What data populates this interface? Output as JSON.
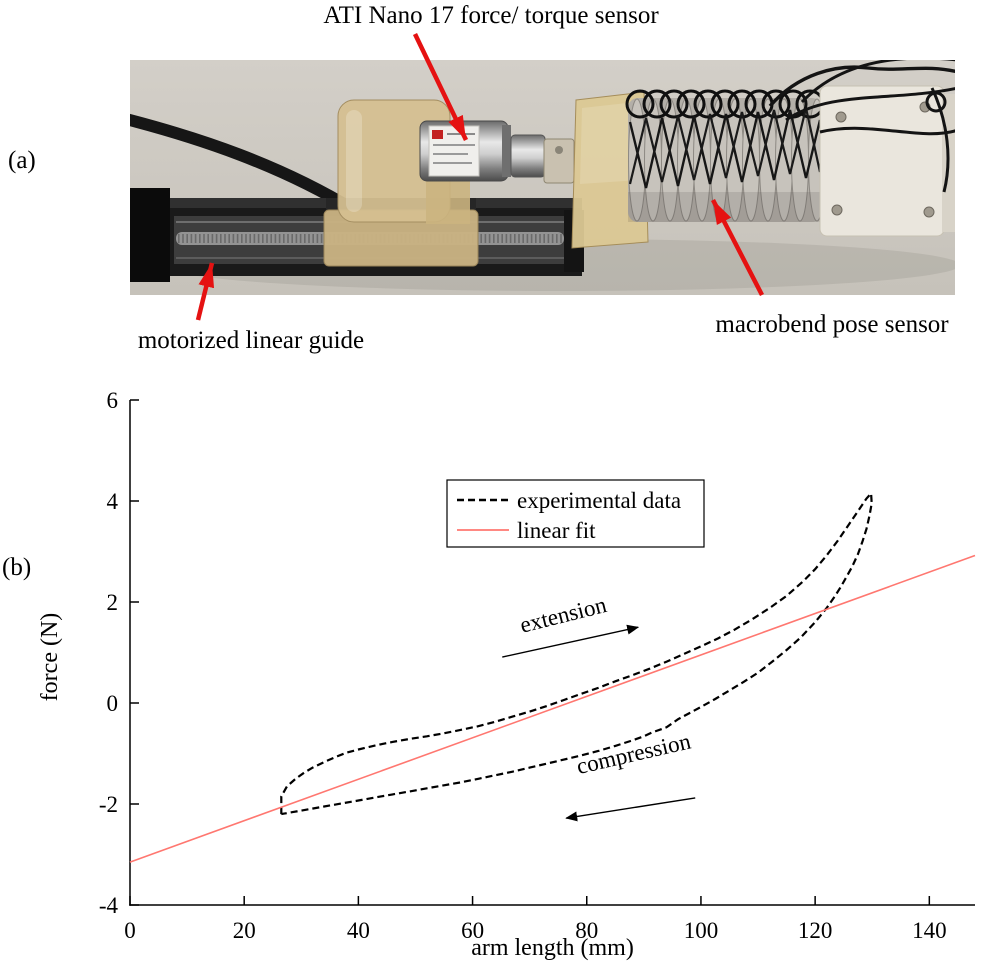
{
  "panels": {
    "a_label": "(a)",
    "b_label": "(b)"
  },
  "photo": {
    "label_top": "ATI Nano 17 force/ torque sensor",
    "label_bottom_left": "motorized linear guide",
    "label_bottom_right": "macrobend pose sensor",
    "arrow_color": "#e51212"
  },
  "chart_data": {
    "type": "line",
    "title": "",
    "xlabel": "arm length (mm)",
    "ylabel": "force (N)",
    "xlim": [
      0,
      148
    ],
    "ylim": [
      -4,
      6
    ],
    "xticks": [
      0,
      20,
      40,
      60,
      80,
      100,
      120,
      140
    ],
    "yticks": [
      -4,
      -2,
      0,
      2,
      4,
      6
    ],
    "grid": false,
    "legend_position": "upper center-left",
    "series": [
      {
        "name": "experimental data",
        "color": "#000000",
        "dash": true,
        "width": 2.2,
        "points": [
          [
            26.5,
            -2.2
          ],
          [
            26.5,
            -1.85
          ],
          [
            27.5,
            -1.65
          ],
          [
            29,
            -1.5
          ],
          [
            30.5,
            -1.38
          ],
          [
            32,
            -1.28
          ],
          [
            34,
            -1.17
          ],
          [
            36,
            -1.07
          ],
          [
            38,
            -0.98
          ],
          [
            40,
            -0.92
          ],
          [
            43,
            -0.84
          ],
          [
            46,
            -0.77
          ],
          [
            49,
            -0.71
          ],
          [
            52,
            -0.66
          ],
          [
            55,
            -0.6
          ],
          [
            58,
            -0.53
          ],
          [
            61,
            -0.46
          ],
          [
            64,
            -0.37
          ],
          [
            67,
            -0.27
          ],
          [
            70,
            -0.17
          ],
          [
            73,
            -0.06
          ],
          [
            76,
            0.06
          ],
          [
            79,
            0.18
          ],
          [
            82,
            0.3
          ],
          [
            85,
            0.43
          ],
          [
            88,
            0.55
          ],
          [
            91,
            0.68
          ],
          [
            94,
            0.82
          ],
          [
            97,
            0.97
          ],
          [
            100,
            1.12
          ],
          [
            103,
            1.28
          ],
          [
            106,
            1.46
          ],
          [
            109,
            1.66
          ],
          [
            112,
            1.88
          ],
          [
            115,
            2.12
          ],
          [
            118,
            2.42
          ],
          [
            120,
            2.65
          ],
          [
            122,
            2.92
          ],
          [
            124,
            3.22
          ],
          [
            126,
            3.55
          ],
          [
            127.5,
            3.8
          ],
          [
            129,
            4.05
          ],
          [
            129.8,
            4.15
          ],
          [
            129.9,
            3.95
          ],
          [
            129.5,
            3.7
          ],
          [
            129,
            3.45
          ],
          [
            128.3,
            3.2
          ],
          [
            127.5,
            2.95
          ],
          [
            126.5,
            2.7
          ],
          [
            125.5,
            2.5
          ],
          [
            124.5,
            2.3
          ],
          [
            123.5,
            2.12
          ],
          [
            122,
            1.88
          ],
          [
            120,
            1.6
          ],
          [
            117.5,
            1.3
          ],
          [
            115,
            1.05
          ],
          [
            112.5,
            0.82
          ],
          [
            110,
            0.6
          ],
          [
            107.5,
            0.42
          ],
          [
            105,
            0.25
          ],
          [
            102.5,
            0.08
          ],
          [
            100,
            -0.08
          ],
          [
            98,
            -0.2
          ],
          [
            96,
            -0.32
          ],
          [
            95,
            -0.4
          ],
          [
            94,
            -0.48
          ],
          [
            93,
            -0.52
          ],
          [
            91.5,
            -0.58
          ],
          [
            90,
            -0.66
          ],
          [
            88,
            -0.74
          ],
          [
            85,
            -0.85
          ],
          [
            82,
            -0.95
          ],
          [
            79,
            -1.04
          ],
          [
            76,
            -1.12
          ],
          [
            73,
            -1.2
          ],
          [
            70,
            -1.28
          ],
          [
            67,
            -1.36
          ],
          [
            64,
            -1.43
          ],
          [
            61,
            -1.5
          ],
          [
            58,
            -1.57
          ],
          [
            55,
            -1.63
          ],
          [
            52,
            -1.69
          ],
          [
            49,
            -1.75
          ],
          [
            46,
            -1.81
          ],
          [
            43,
            -1.87
          ],
          [
            40,
            -1.93
          ],
          [
            37,
            -1.99
          ],
          [
            34,
            -2.05
          ],
          [
            31,
            -2.11
          ],
          [
            28.5,
            -2.16
          ],
          [
            27,
            -2.19
          ],
          [
            26.5,
            -2.2
          ]
        ]
      },
      {
        "name": "linear fit",
        "color": "#ff7770",
        "dash": false,
        "width": 1.6,
        "points": [
          [
            0,
            -3.15
          ],
          [
            148,
            2.92
          ]
        ]
      }
    ],
    "annotations": [
      {
        "text": "extension",
        "x": 76.2,
        "y": 1.6,
        "rotation": -14,
        "arrow": {
          "x1": 65.2,
          "y1": 0.91,
          "x2": 89.0,
          "y2": 1.5
        }
      },
      {
        "text": "compression",
        "x": 88.5,
        "y": -1.15,
        "rotation": -13,
        "arrow": {
          "x1": 99.0,
          "y1": -1.88,
          "x2": 76.4,
          "y2": -2.28
        }
      }
    ]
  }
}
